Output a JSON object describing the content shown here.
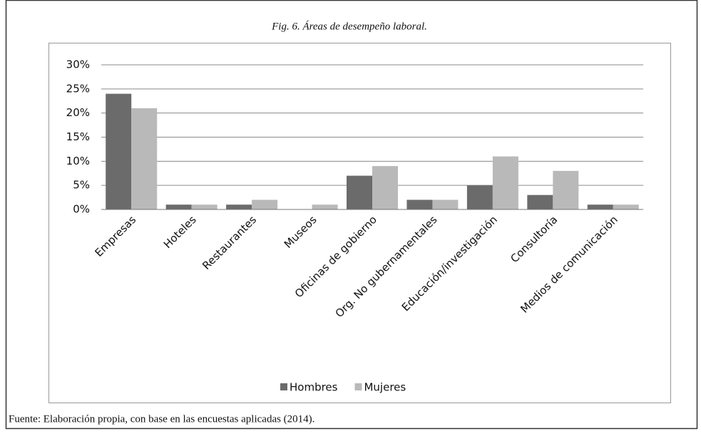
{
  "chart_data": {
    "type": "bar",
    "title": "Fig. 6. Áreas de desempeño laboral.",
    "source": "Fuente: Elaboración propia, con base en las encuestas aplicadas (2014).",
    "categories": [
      "Empresas",
      "Hoteles",
      "Restaurantes",
      "Museos",
      "Oficinas de gobierno",
      "Org. No gubernamentales",
      "Educación/investigación",
      "Consultoría",
      "Medios de comunicación"
    ],
    "series": [
      {
        "name": "Hombres",
        "color": "#6b6b6b",
        "values": [
          24,
          1,
          1,
          0,
          7,
          2,
          5,
          3,
          1
        ]
      },
      {
        "name": "Mujeres",
        "color": "#b9b9b9",
        "values": [
          21,
          1,
          2,
          1,
          9,
          2,
          11,
          8,
          1
        ]
      }
    ],
    "ylim": [
      0,
      30
    ],
    "yticks": [
      {
        "value": 0,
        "label": "0%"
      },
      {
        "value": 5,
        "label": "5%"
      },
      {
        "value": 10,
        "label": "10%"
      },
      {
        "value": 15,
        "label": "15%"
      },
      {
        "value": 20,
        "label": "20%"
      },
      {
        "value": 25,
        "label": "25%"
      },
      {
        "value": 30,
        "label": "30%"
      }
    ],
    "grid": true,
    "legend": "bottom"
  }
}
